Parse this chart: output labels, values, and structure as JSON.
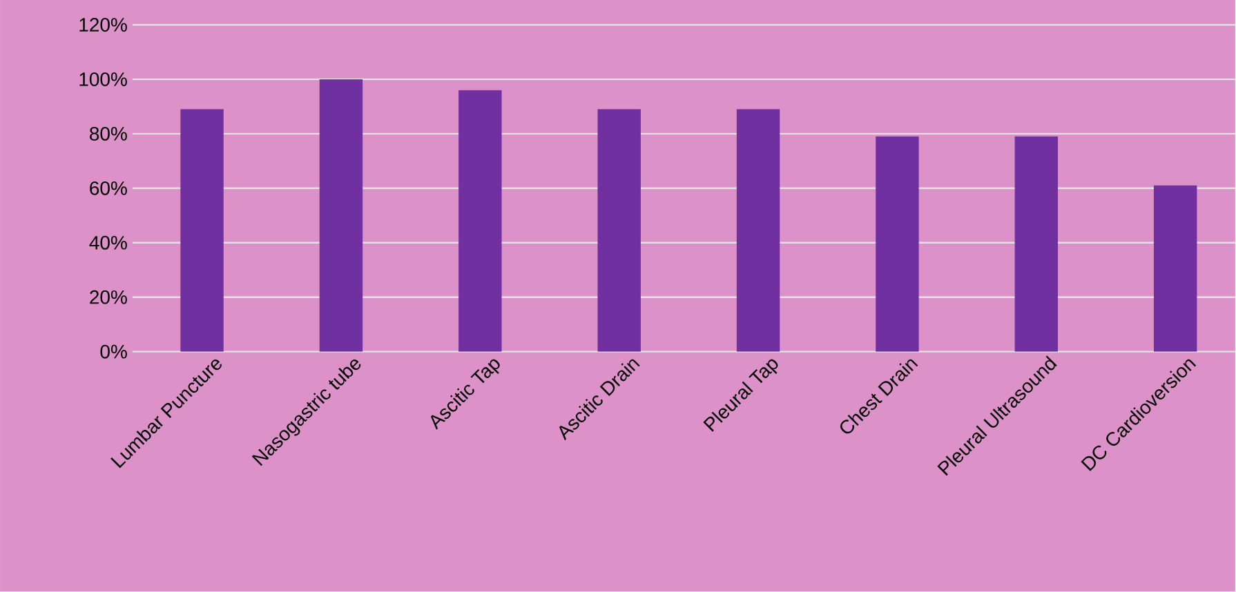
{
  "chart_data": {
    "type": "bar",
    "categories": [
      "Lumbar Puncture",
      "Nasogastric tube",
      "Ascitic Tap",
      "Ascitic Drain",
      "Pleural Tap",
      "Chest Drain",
      "Pleural Ultrasound",
      "DC Cardioversion"
    ],
    "values": [
      89,
      100,
      96,
      89,
      89,
      79,
      79,
      61
    ],
    "color": "#7030a0",
    "ylim": [
      0,
      120
    ],
    "yticks": [
      {
        "value": 0,
        "label": "0%"
      },
      {
        "value": 20,
        "label": "20%"
      },
      {
        "value": 40,
        "label": "40%"
      },
      {
        "value": 60,
        "label": "60%"
      },
      {
        "value": 80,
        "label": "80%"
      },
      {
        "value": 100,
        "label": "100%"
      },
      {
        "value": 120,
        "label": "120%"
      }
    ],
    "grid": "y"
  }
}
